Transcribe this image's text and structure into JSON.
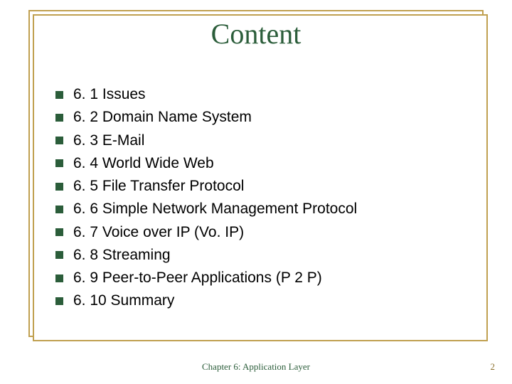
{
  "title": "Content",
  "title_color": "#2b5d3a",
  "title_fontsize": 40,
  "frame_color": "#c0a050",
  "bullet_color": "#2b5d3a",
  "bullet_size": 11,
  "item_fontsize": 21,
  "item_color": "#000000",
  "items": [
    "6. 1 Issues",
    "6. 2 Domain Name System",
    "6. 3 E-Mail",
    "6. 4 World Wide Web",
    "6. 5 File Transfer Protocol",
    "6. 6 Simple Network Management Protocol",
    "6. 7 Voice over IP (Vo. IP)",
    "6. 8 Streaming",
    "6. 9 Peer-to-Peer Applications (P 2 P)",
    "6. 10 Summary"
  ],
  "footer": "Chapter 6: Application Layer",
  "footer_color": "#2b5d3a",
  "footer_fontsize": 13,
  "page_number": "2",
  "page_number_color": "#8b6f2b",
  "background_color": "#ffffff"
}
